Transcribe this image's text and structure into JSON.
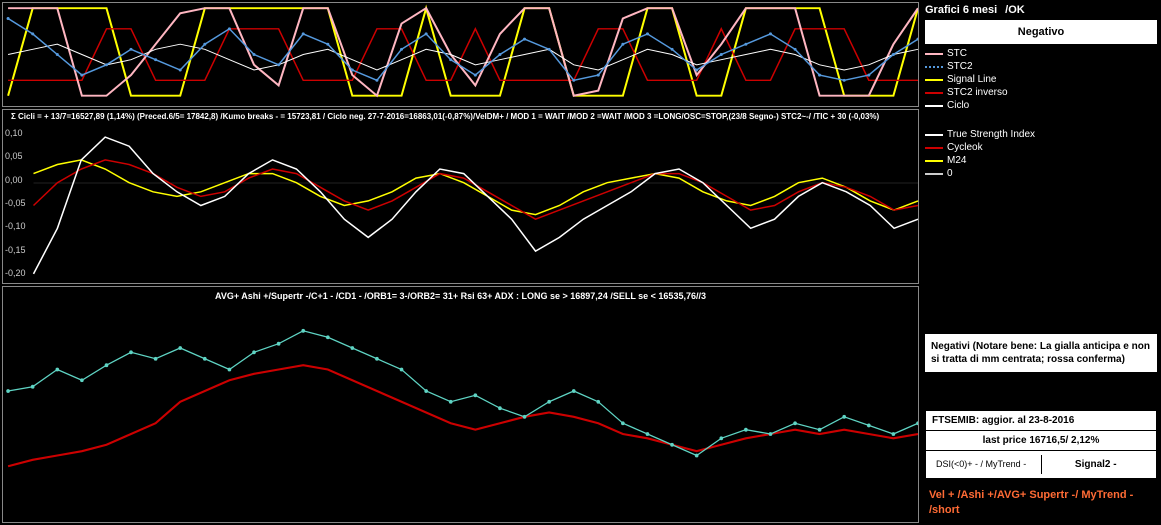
{
  "header": {
    "title": "Grafici 6 mesi",
    "status_ok": "/OK",
    "status_label": "Negativo"
  },
  "panel1": {
    "legend": [
      {
        "label": "STC",
        "color": "#ffb6c1",
        "style": "solid"
      },
      {
        "label": "STC2",
        "color": "#5599dd",
        "style": "dotted"
      },
      {
        "label": "Signal Line",
        "color": "#ffff00",
        "style": "solid"
      },
      {
        "label": "STC2 inverso",
        "color": "#cc0000",
        "style": "solid"
      },
      {
        "label": "Ciclo",
        "color": "#ffffff",
        "style": "solid"
      }
    ],
    "colors": {
      "bg": "#000",
      "border": "#888"
    },
    "series": {
      "stc": {
        "color": "#ffb6c1",
        "width": 2,
        "data": [
          95,
          95,
          95,
          10,
          10,
          30,
          60,
          90,
          95,
          95,
          40,
          20,
          95,
          95,
          30,
          10,
          80,
          95,
          50,
          20,
          70,
          95,
          95,
          10,
          15,
          85,
          95,
          95,
          30,
          60,
          95,
          95,
          95,
          10,
          10,
          10,
          60,
          95
        ]
      },
      "stc2": {
        "color": "#5599dd",
        "width": 1.5,
        "markers": true,
        "data": [
          85,
          70,
          50,
          30,
          40,
          55,
          45,
          35,
          60,
          75,
          50,
          40,
          70,
          60,
          35,
          25,
          55,
          70,
          45,
          30,
          50,
          65,
          55,
          25,
          30,
          60,
          70,
          55,
          35,
          50,
          60,
          70,
          55,
          30,
          25,
          30,
          50,
          65
        ]
      },
      "signal": {
        "color": "#ffff00",
        "width": 2,
        "data": [
          10,
          95,
          95,
          95,
          95,
          10,
          10,
          10,
          95,
          95,
          95,
          95,
          95,
          95,
          10,
          10,
          10,
          95,
          10,
          10,
          10,
          95,
          95,
          10,
          10,
          10,
          95,
          95,
          10,
          10,
          95,
          95,
          95,
          95,
          10,
          10,
          10,
          95
        ]
      },
      "stc2inv": {
        "color": "#cc0000",
        "width": 1.5,
        "data": [
          25,
          25,
          25,
          25,
          75,
          75,
          25,
          25,
          25,
          75,
          75,
          75,
          25,
          25,
          25,
          75,
          75,
          25,
          25,
          75,
          25,
          25,
          25,
          25,
          75,
          75,
          25,
          25,
          25,
          75,
          25,
          25,
          75,
          75,
          75,
          25,
          25,
          25
        ]
      },
      "ciclo": {
        "color": "#ffffff",
        "width": 1,
        "data": [
          50,
          55,
          60,
          50,
          40,
          45,
          55,
          60,
          55,
          45,
          35,
          40,
          50,
          55,
          45,
          35,
          45,
          55,
          50,
          40,
          45,
          50,
          55,
          40,
          35,
          45,
          55,
          50,
          40,
          45,
          50,
          55,
          50,
          40,
          35,
          40,
          50,
          55
        ]
      }
    }
  },
  "panel2": {
    "title_text": "Σ Cicli = + 13/7=16527,89 (1,14%) (Preced.6/5= 17842,8) /Kumo breaks - = 15723,81 / Ciclo neg. 27-7-2016=16863,01(-0,87%)/VeIDM+ / MOD 1 = WAIT /MOD 2 =WAIT /MOD 3 =LONG/OSC=STOP,(23/8 Segno-) STC2~-/  /TIC + 30 (-0,03%)",
    "legend": [
      {
        "label": "True Strength Index",
        "color": "#ffffff",
        "style": "solid"
      },
      {
        "label": "Cycleok",
        "color": "#cc0000",
        "style": "solid"
      },
      {
        "label": "M24",
        "color": "#ffff00",
        "style": "solid"
      },
      {
        "label": "0",
        "color": "#cccccc",
        "style": "solid"
      }
    ],
    "y_ticks": [
      "0,10",
      "0,05",
      "0,00",
      "-0,05",
      "-0,10",
      "-0,15",
      "-0,20"
    ],
    "note": "Negativi  (Notare bene: La gialla anticipa e non si tratta di mm centrata; rossa conferma)",
    "series": {
      "tsi": {
        "color": "#ffffff",
        "width": 1.5,
        "data": [
          -0.2,
          -0.1,
          0.05,
          0.1,
          0.08,
          0.02,
          -0.02,
          -0.05,
          -0.03,
          0.02,
          0.05,
          0.03,
          -0.02,
          -0.08,
          -0.12,
          -0.08,
          -0.02,
          0.03,
          0.02,
          -0.03,
          -0.08,
          -0.15,
          -0.12,
          -0.08,
          -0.05,
          -0.02,
          0.02,
          0.03,
          0.0,
          -0.05,
          -0.1,
          -0.08,
          -0.03,
          0.0,
          -0.02,
          -0.05,
          -0.1,
          -0.08
        ]
      },
      "cycleok": {
        "color": "#cc0000",
        "width": 1.5,
        "data": [
          -0.05,
          0.0,
          0.03,
          0.05,
          0.04,
          0.02,
          -0.01,
          -0.03,
          -0.02,
          0.01,
          0.03,
          0.02,
          -0.01,
          -0.04,
          -0.06,
          -0.04,
          -0.01,
          0.02,
          0.01,
          -0.02,
          -0.05,
          -0.08,
          -0.06,
          -0.04,
          -0.02,
          0.0,
          0.02,
          0.02,
          0.0,
          -0.03,
          -0.06,
          -0.05,
          -0.02,
          0.0,
          -0.01,
          -0.03,
          -0.06,
          -0.05
        ]
      },
      "m24": {
        "color": "#ffff00",
        "width": 1.5,
        "data": [
          0.02,
          0.04,
          0.05,
          0.03,
          0.0,
          -0.02,
          -0.03,
          -0.02,
          0.0,
          0.02,
          0.02,
          0.0,
          -0.03,
          -0.05,
          -0.04,
          -0.02,
          0.01,
          0.02,
          0.0,
          -0.03,
          -0.06,
          -0.07,
          -0.05,
          -0.02,
          0.0,
          0.01,
          0.02,
          0.01,
          -0.02,
          -0.04,
          -0.05,
          -0.03,
          0.0,
          0.01,
          -0.01,
          -0.04,
          -0.06,
          -0.04
        ]
      }
    },
    "ylim": [
      -0.22,
      0.12
    ]
  },
  "panel3": {
    "title_text": "AVG+ Ashi +/Supertr -/C+1 - /CD1 - /ORB1= 3-/ORB2= 31+ Rsi 63+ ADX : LONG se > 16897,24 /SELL se < 16535,76//3",
    "series": {
      "price": {
        "color": "#5fd4c4",
        "width": 1.2,
        "markers": true,
        "data": [
          60,
          62,
          70,
          65,
          72,
          78,
          75,
          80,
          75,
          70,
          78,
          82,
          88,
          85,
          80,
          75,
          70,
          60,
          55,
          58,
          52,
          48,
          55,
          60,
          55,
          45,
          40,
          35,
          30,
          38,
          42,
          40,
          45,
          42,
          48,
          44,
          40,
          45
        ]
      },
      "avg": {
        "color": "#cc0000",
        "width": 2,
        "data": [
          25,
          28,
          30,
          32,
          35,
          40,
          45,
          55,
          60,
          65,
          68,
          70,
          72,
          70,
          65,
          60,
          55,
          50,
          45,
          42,
          45,
          48,
          50,
          48,
          45,
          40,
          38,
          35,
          32,
          35,
          38,
          40,
          42,
          40,
          42,
          40,
          38,
          40
        ]
      }
    },
    "ylim": [
      0,
      100
    ]
  },
  "info_table": {
    "r1": "FTSEMIB:  aggior. al  23-8-2016",
    "r2": "last price 16716,5/ 2,12%",
    "r3a": "DSI(<0)+ - / MyTrend -",
    "r3b": "Signal2 -",
    "trend": "Vel +  /Ashi +/AVG+ Supertr -/ MyTrend - /short"
  }
}
